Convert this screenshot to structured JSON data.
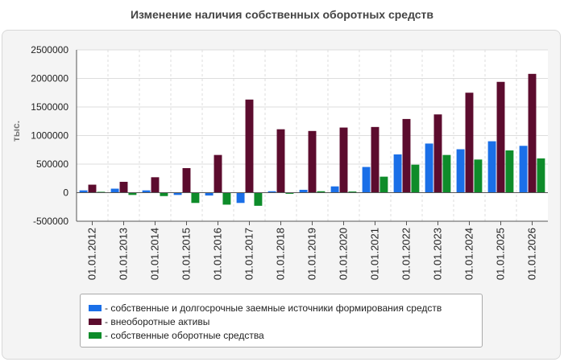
{
  "title": "Изменение наличия собственных оборотных средств",
  "colors": {
    "background": "#f4f4f4",
    "plot_background": "#ffffff",
    "grid": "#dddddd",
    "axis": "#555555"
  },
  "chart_data": {
    "type": "bar",
    "title": "Изменение наличия собственных оборотных средств",
    "xlabel": "",
    "ylabel": "тыс.",
    "ylim": [
      -500000,
      2500000
    ],
    "yticks": [
      -500000,
      0,
      500000,
      1000000,
      1500000,
      2000000,
      2500000
    ],
    "grid": true,
    "legend_position": "bottom",
    "categories": [
      "01.01.2012",
      "01.01.2013",
      "01.01.2014",
      "01.01.2015",
      "01.01.2016",
      "01.01.2017",
      "01.01.2018",
      "01.01.2019",
      "01.01.2020",
      "01.01.2021",
      "01.01.2022",
      "01.01.2023",
      "01.01.2024",
      "01.01.2025",
      "01.01.2026"
    ],
    "series": [
      {
        "name": "- собственные и долгосрочные заемные источники формирования средств",
        "color": "#1a6fe8",
        "values": [
          40000,
          70000,
          40000,
          -40000,
          -50000,
          -180000,
          25000,
          50000,
          110000,
          450000,
          670000,
          860000,
          760000,
          900000,
          820000
        ]
      },
      {
        "name": "- внеоборотные активы",
        "color": "#5c0c2e",
        "values": [
          140000,
          190000,
          270000,
          430000,
          660000,
          1630000,
          1110000,
          1080000,
          1140000,
          1150000,
          1290000,
          1370000,
          1750000,
          1940000,
          2080000
        ]
      },
      {
        "name": "- собственные оборотные средства",
        "color": "#0e8c2a",
        "values": [
          15000,
          -40000,
          -60000,
          -180000,
          -210000,
          -230000,
          -20000,
          25000,
          20000,
          280000,
          490000,
          660000,
          580000,
          740000,
          600000
        ]
      }
    ]
  }
}
